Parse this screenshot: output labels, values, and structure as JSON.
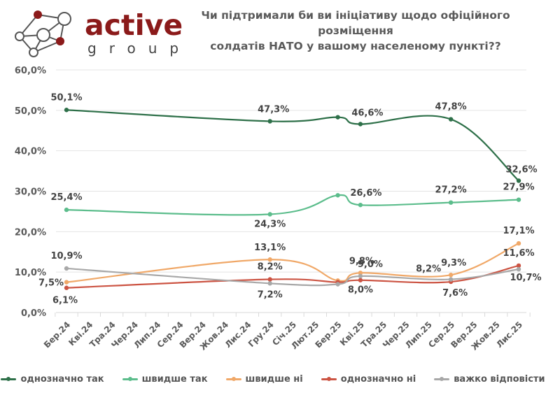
{
  "logo": {
    "word": "active",
    "sub": "group",
    "accent": "#8b1a1a"
  },
  "title": {
    "line1": "Чи підтримали би ви ініціативу щодо офіційного розміщення",
    "line2": "солдатів НАТО у вашому населеному пункті??"
  },
  "chart_data": {
    "type": "line",
    "title": "Чи підтримали би ви ініціативу щодо офіційного розміщення солдатів НАТО у вашому населеному пункті??",
    "xlabel": "",
    "ylabel": "",
    "ylim": [
      0,
      60
    ],
    "yticks": [
      "0,0%",
      "10,0%",
      "20,0%",
      "30,0%",
      "40,0%",
      "50,0%",
      "60,0%"
    ],
    "ytick_values": [
      0,
      10,
      20,
      30,
      40,
      50,
      60
    ],
    "grid": true,
    "legend_position": "bottom",
    "categories": [
      "Бер.24",
      "Кві.24",
      "Тра.24",
      "Чер.24",
      "Лип.24",
      "Сер.24",
      "Вер.24",
      "Жов.24",
      "Лис.24",
      "Гру.24",
      "Січ.25",
      "Лют.25",
      "Бер.25",
      "Кві.25",
      "Тра.25",
      "Чер.25",
      "Лип.25",
      "Сер.25",
      "Вер.25",
      "Жов.25",
      "Лис.25"
    ],
    "point_indices": [
      0,
      9,
      12,
      13,
      17,
      20
    ],
    "series": [
      {
        "name": "однозначно так",
        "color": "#2e7049",
        "values": [
          50.1,
          47.3,
          48.3,
          46.6,
          47.8,
          32.6
        ],
        "labels": [
          "50,1%",
          "47,3%",
          "",
          "46,6%",
          "47,8%",
          "32,6%"
        ]
      },
      {
        "name": "швидше так",
        "color": "#5cbd8c",
        "values": [
          25.4,
          24.3,
          29.0,
          26.6,
          27.2,
          27.9
        ],
        "labels": [
          "25,4%",
          "24,3%",
          "",
          "26,6%",
          "27,2%",
          "27,9%"
        ]
      },
      {
        "name": "швидше ні",
        "color": "#f0a868",
        "values": [
          7.5,
          13.1,
          7.9,
          9.8,
          9.3,
          17.1
        ],
        "labels": [
          "7,5%",
          "13,1%",
          "",
          "9,8%",
          "9,3%",
          "17,1%"
        ]
      },
      {
        "name": "однозначно ні",
        "color": "#cc5443",
        "values": [
          6.1,
          8.2,
          7.5,
          8.0,
          7.6,
          11.6
        ],
        "labels": [
          "6,1%",
          "8,2%",
          "",
          "8,0%",
          "7,6%",
          "11,6%"
        ]
      },
      {
        "name": "важко відповісти",
        "color": "#a8a8a8",
        "values": [
          10.9,
          7.2,
          7.0,
          9.0,
          8.2,
          10.7
        ],
        "labels": [
          "10,9%",
          "7,2%",
          "",
          "9,0%",
          "8,2%",
          "10,7%"
        ]
      }
    ]
  }
}
